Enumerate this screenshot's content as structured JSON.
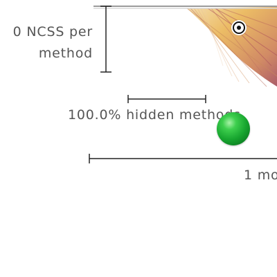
{
  "legend": {
    "ncss_label_line1": "0 NCSS per",
    "ncss_label_line2": "method",
    "hidden_label": "100.0% hidden methods",
    "time_label": "1 mo"
  },
  "controls": {
    "target_icon": "target-icon",
    "node_icon": "green-sphere-icon"
  },
  "colors": {
    "ink": "#555555",
    "node_green": "#17a52f",
    "burst_warm": "#e8b04a",
    "burst_deep": "#9c3f4e"
  }
}
